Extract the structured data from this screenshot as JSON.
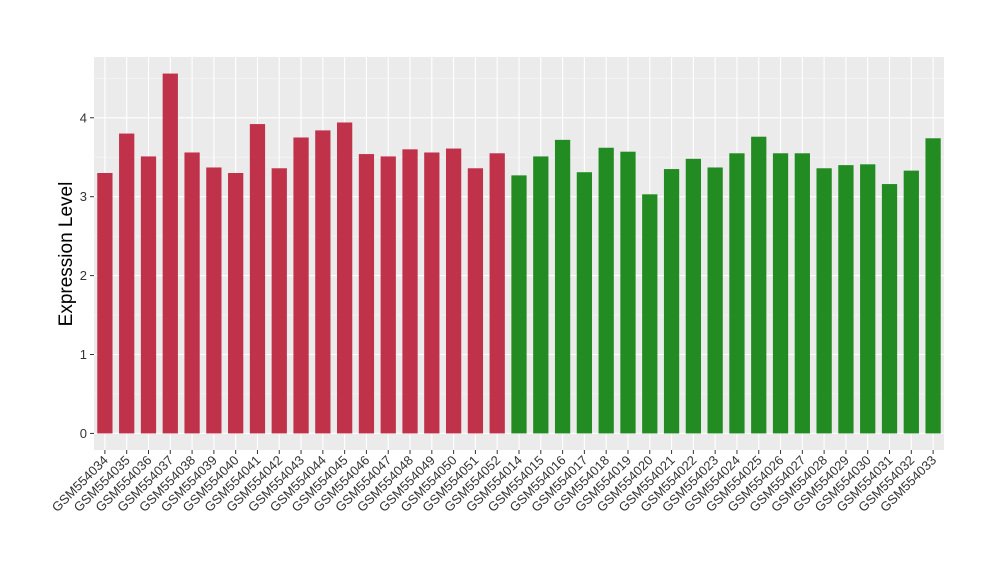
{
  "chart_data": {
    "type": "bar",
    "ylabel": "Expression Level",
    "xlabel": "",
    "ylim": [
      -0.21,
      4.77
    ],
    "yticks": [
      0,
      1,
      2,
      3,
      4
    ],
    "grid": true,
    "background": "#EBEBEB",
    "categories": [
      "GSM554034",
      "GSM554035",
      "GSM554036",
      "GSM554037",
      "GSM554038",
      "GSM554039",
      "GSM554040",
      "GSM554041",
      "GSM554042",
      "GSM554043",
      "GSM554044",
      "GSM554045",
      "GSM554046",
      "GSM554047",
      "GSM554048",
      "GSM554049",
      "GSM554050",
      "GSM554051",
      "GSM554052",
      "GSM554014",
      "GSM554015",
      "GSM554016",
      "GSM554017",
      "GSM554018",
      "GSM554019",
      "GSM554020",
      "GSM554021",
      "GSM554022",
      "GSM554023",
      "GSM554024",
      "GSM554025",
      "GSM554026",
      "GSM554027",
      "GSM554028",
      "GSM554029",
      "GSM554030",
      "GSM554031",
      "GSM554032",
      "GSM554033"
    ],
    "values": [
      3.3,
      3.8,
      3.51,
      4.56,
      3.56,
      3.37,
      3.3,
      3.92,
      3.36,
      3.75,
      3.84,
      3.94,
      3.54,
      3.51,
      3.6,
      3.56,
      3.61,
      3.36,
      3.55,
      3.27,
      3.51,
      3.72,
      3.31,
      3.62,
      3.57,
      3.03,
      3.35,
      3.48,
      3.37,
      3.55,
      3.76,
      3.55,
      3.55,
      3.36,
      3.4,
      3.41,
      3.16,
      3.33,
      3.74
    ],
    "bar_colors": [
      "#C0314A",
      "#C0314A",
      "#C0314A",
      "#C0314A",
      "#C0314A",
      "#C0314A",
      "#C0314A",
      "#C0314A",
      "#C0314A",
      "#C0314A",
      "#C0314A",
      "#C0314A",
      "#C0314A",
      "#C0314A",
      "#C0314A",
      "#C0314A",
      "#C0314A",
      "#C0314A",
      "#C0314A",
      "#228B22",
      "#228B22",
      "#228B22",
      "#228B22",
      "#228B22",
      "#228B22",
      "#228B22",
      "#228B22",
      "#228B22",
      "#228B22",
      "#228B22",
      "#228B22",
      "#228B22",
      "#228B22",
      "#228B22",
      "#228B22",
      "#228B22",
      "#228B22",
      "#228B22",
      "#228B22"
    ]
  }
}
